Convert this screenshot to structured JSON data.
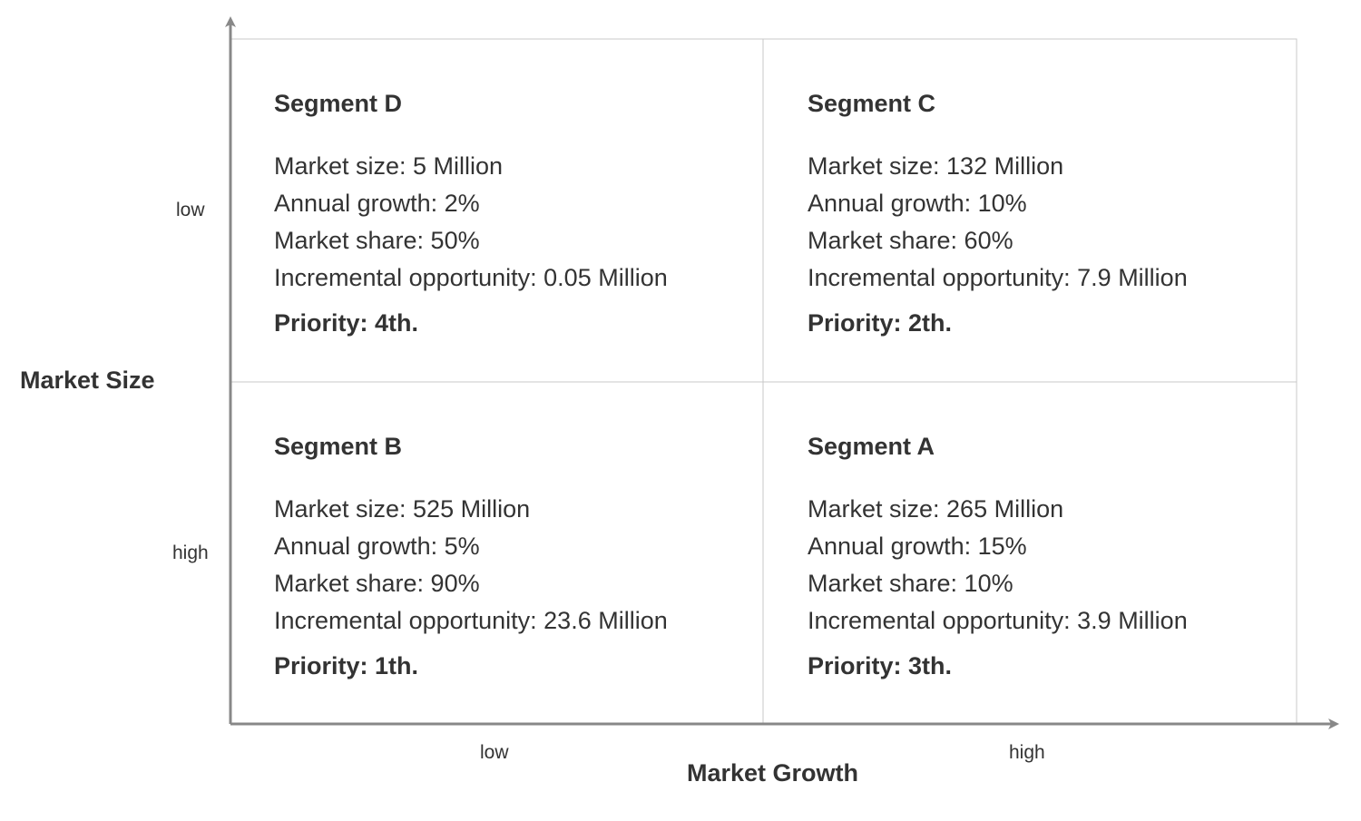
{
  "axes": {
    "y_title": "Market Size",
    "x_title": "Market Growth",
    "y_ticks": {
      "top": "low",
      "bottom": "high"
    },
    "x_ticks": {
      "left": "low",
      "right": "high"
    }
  },
  "quadrants": [
    {
      "position": "top-left",
      "title": "Segment D",
      "market_size": "Market size: 5 Million",
      "annual_growth": "Annual growth: 2%",
      "market_share": "Market share: 50%",
      "incremental_opportunity": "Incremental opportunity: 0.05 Million",
      "priority": "Priority: 4th."
    },
    {
      "position": "top-right",
      "title": "Segment C",
      "market_size": "Market size: 132 Million",
      "annual_growth": "Annual growth: 10%",
      "market_share": "Market share: 60%",
      "incremental_opportunity": "Incremental opportunity: 7.9 Million",
      "priority": "Priority: 2th."
    },
    {
      "position": "bottom-left",
      "title": "Segment B",
      "market_size": "Market size: 525 Million",
      "annual_growth": "Annual growth: 5%",
      "market_share": "Market share: 90%",
      "incremental_opportunity": "Incremental opportunity: 23.6 Million",
      "priority": "Priority: 1th."
    },
    {
      "position": "bottom-right",
      "title": "Segment A",
      "market_size": "Market size: 265 Million",
      "annual_growth": "Annual growth: 15%",
      "market_share": "Market share: 10%",
      "incremental_opportunity": "Incremental opportunity: 3.9 Million",
      "priority": "Priority: 3th."
    }
  ],
  "colors": {
    "axis": "#888888",
    "grid": "#c8c8c8",
    "text": "#333333"
  }
}
